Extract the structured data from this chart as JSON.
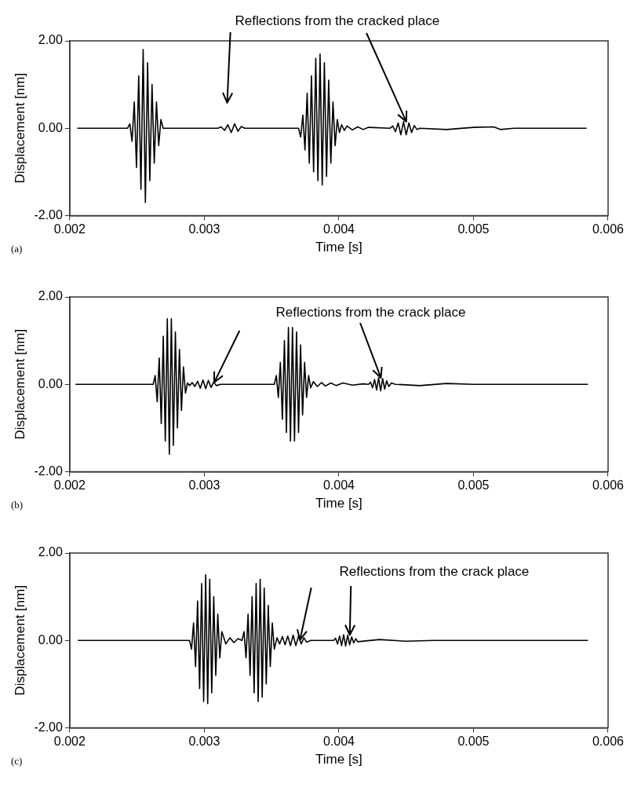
{
  "chart_data": [
    {
      "type": "line",
      "xlabel": "Time [s]",
      "ylabel": "Displacement [nm]",
      "annotations": [
        {
          "text": "Reflections from the cracked place",
          "x": 0.0045,
          "y": 0.15
        },
        "(a)"
      ],
      "xlim": [
        0.002,
        0.006
      ],
      "xticks": [
        0.002,
        0.003,
        0.004,
        0.005,
        0.006
      ],
      "ylim": [
        -2,
        2
      ],
      "yticks": [
        {
          "value": -2,
          "label": "-2.00"
        },
        {
          "value": 0,
          "label": "0.00"
        },
        {
          "value": 2,
          "label": "2.00"
        }
      ],
      "marker": "none",
      "series": [
        {
          "color": "#000000",
          "x": [
            0.002056,
            0.00243,
            0.0024465,
            0.002463,
            0.0024795,
            0.002496,
            0.0025125,
            0.002529,
            0.0025455,
            0.002562,
            0.0025785,
            0.002595,
            0.0026115,
            0.002628,
            0.0026445,
            0.002661,
            0.0026775,
            0.002694,
            0.0031,
            0.003125,
            0.00315,
            0.003175,
            0.0032,
            0.003225,
            0.00325,
            0.003275,
            0.0033,
            0.0037,
            0.003716,
            0.003732,
            0.003748,
            0.003764,
            0.00378,
            0.003796,
            0.003812,
            0.003828,
            0.003844,
            0.00386,
            0.003876,
            0.003892,
            0.003908,
            0.003924,
            0.00394,
            0.003956,
            0.003972,
            0.003988,
            0.004004,
            0.00402,
            0.00404,
            0.00406,
            0.0041,
            0.00414,
            0.00418,
            0.00422,
            0.00438,
            0.0044,
            0.00442,
            0.00444,
            0.00446,
            0.00448,
            0.0045,
            0.00452,
            0.00454,
            0.00456,
            0.00458,
            0.0046,
            0.0048,
            0.005,
            0.00515,
            0.0052,
            0.0053,
            0.00584
          ],
          "values": [
            0,
            0,
            0.1,
            -0.3,
            0.6,
            -0.9,
            1.2,
            -1.4,
            1.8,
            -1.7,
            1.5,
            -1.2,
            1.0,
            -0.8,
            0.6,
            -0.4,
            0.2,
            0,
            0,
            0.03,
            -0.05,
            0.08,
            -0.1,
            0.1,
            -0.07,
            0.04,
            0,
            0,
            -0.2,
            0.3,
            -0.5,
            0.8,
            -0.8,
            1.2,
            -1.0,
            1.6,
            -1.2,
            1.7,
            -1.3,
            1.5,
            -1.1,
            1.1,
            -0.8,
            0.6,
            -0.4,
            0.2,
            -0.1,
            0.08,
            -0.05,
            0.05,
            -0.04,
            0.03,
            -0.03,
            0.02,
            0,
            0.05,
            -0.08,
            0.12,
            -0.15,
            0.15,
            -0.15,
            0.12,
            -0.1,
            0.06,
            -0.03,
            0,
            -0.03,
            0.02,
            0.03,
            -0.03,
            0,
            0
          ]
        }
      ]
    },
    {
      "type": "line",
      "xlabel": "Time [s]",
      "ylabel": "Displacement [nm]",
      "annotations": [
        {
          "text": "Reflections from the crack place",
          "x": 0.00431,
          "y": 0.15
        },
        "(b)"
      ],
      "xlim": [
        0.002,
        0.006
      ],
      "xticks": [
        0.002,
        0.003,
        0.004,
        0.005,
        0.006
      ],
      "ylim": [
        -2,
        2
      ],
      "yticks": [
        {
          "value": -2,
          "label": "-2.00"
        },
        {
          "value": 0,
          "label": "0.00"
        },
        {
          "value": 2,
          "label": "2.00"
        }
      ],
      "marker": "none",
      "series": [
        {
          "color": "#000000",
          "x": [
            0.002043,
            0.00262,
            0.002635,
            0.00265,
            0.002665,
            0.00268,
            0.002695,
            0.00271,
            0.002725,
            0.00274,
            0.002755,
            0.00277,
            0.002785,
            0.0028,
            0.002815,
            0.00283,
            0.002845,
            0.00286,
            0.002875,
            0.00289,
            0.00291,
            0.00293,
            0.00295,
            0.00297,
            0.00299,
            0.00301,
            0.00303,
            0.00305,
            0.00307,
            0.00309,
            0.00312,
            0.00352,
            0.003535,
            0.00355,
            0.003565,
            0.00358,
            0.003595,
            0.00361,
            0.003625,
            0.00364,
            0.003655,
            0.00367,
            0.003685,
            0.0037,
            0.003715,
            0.00373,
            0.003745,
            0.00376,
            0.003775,
            0.00379,
            0.00381,
            0.00384,
            0.00387,
            0.0039,
            0.00394,
            0.00398,
            0.00403,
            0.0041,
            0.00418,
            0.00422,
            0.004235,
            0.00425,
            0.004265,
            0.00428,
            0.004295,
            0.00431,
            0.004325,
            0.00434,
            0.004355,
            0.00437,
            0.00439,
            0.00442,
            0.0046,
            0.0048,
            0.005,
            0.00585
          ],
          "values": [
            0,
            0,
            0.2,
            -0.4,
            0.6,
            -0.9,
            1.1,
            -1.3,
            1.5,
            -1.6,
            1.5,
            -1.4,
            1.2,
            -1.0,
            0.8,
            -0.6,
            0.4,
            -0.2,
            0.03,
            -0.03,
            0.04,
            -0.05,
            0.07,
            -0.09,
            0.1,
            -0.1,
            0.09,
            -0.07,
            0.05,
            -0.03,
            0,
            0,
            0.2,
            -0.3,
            0.5,
            -0.8,
            1.0,
            -1.1,
            1.3,
            -1.3,
            1.3,
            -1.3,
            1.2,
            -1.1,
            0.9,
            -0.7,
            0.5,
            -0.3,
            0.2,
            -0.08,
            0.06,
            -0.05,
            0.04,
            -0.04,
            0.03,
            -0.03,
            0.03,
            -0.02,
            0.01,
            0,
            0.05,
            -0.08,
            0.11,
            -0.13,
            0.15,
            -0.15,
            0.13,
            -0.11,
            0.08,
            -0.05,
            0.03,
            0,
            -0.03,
            0.02,
            0,
            0
          ]
        }
      ]
    },
    {
      "type": "line",
      "xlabel": "Time [s]",
      "ylabel": "Displacement [nm]",
      "annotations": [
        {
          "text": "Reflections from the crack place",
          "x": 0.00408,
          "y": 0.12
        },
        "(c)"
      ],
      "xlim": [
        0.002,
        0.006
      ],
      "xticks": [
        0.002,
        0.003,
        0.004,
        0.005,
        0.006
      ],
      "ylim": [
        -2,
        2
      ],
      "yticks": [
        {
          "value": -2,
          "label": "-2.00"
        },
        {
          "value": 0,
          "label": "0.00"
        },
        {
          "value": 2,
          "label": "2.00"
        }
      ],
      "marker": "none",
      "series": [
        {
          "color": "#000000",
          "x": [
            0.00206,
            0.00289,
            0.002905,
            0.00292,
            0.002935,
            0.00295,
            0.002965,
            0.00298,
            0.002995,
            0.00301,
            0.003025,
            0.00304,
            0.003055,
            0.00307,
            0.003085,
            0.0031,
            0.003115,
            0.00313,
            0.00316,
            0.00319,
            0.00322,
            0.00325,
            0.00328,
            0.003295,
            0.00331,
            0.003325,
            0.00334,
            0.003355,
            0.00337,
            0.003385,
            0.0034,
            0.003415,
            0.00343,
            0.003445,
            0.00346,
            0.003475,
            0.00349,
            0.003505,
            0.00352,
            0.00354,
            0.00356,
            0.00358,
            0.0036,
            0.00362,
            0.00364,
            0.00366,
            0.00368,
            0.0037,
            0.00372,
            0.00374,
            0.00376,
            0.00379,
            0.00396,
            0.003975,
            0.00399,
            0.004005,
            0.00402,
            0.004035,
            0.00405,
            0.004065,
            0.00408,
            0.004095,
            0.00411,
            0.004125,
            0.00414,
            0.0043,
            0.0045,
            0.0047,
            0.00585
          ],
          "values": [
            0,
            0,
            -0.2,
            0.4,
            -0.6,
            0.9,
            -1.1,
            1.3,
            -1.4,
            1.5,
            -1.45,
            1.4,
            -1.2,
            1.0,
            -0.8,
            0.6,
            -0.4,
            0.2,
            -0.08,
            0.06,
            -0.05,
            0.04,
            0,
            0.2,
            -0.4,
            0.6,
            -0.8,
            1.0,
            -1.2,
            1.3,
            -1.4,
            1.4,
            -1.3,
            1.2,
            -1.0,
            0.8,
            -0.6,
            0.4,
            -0.2,
            0.06,
            -0.08,
            0.09,
            -0.1,
            0.1,
            -0.12,
            0.12,
            -0.12,
            0.1,
            -0.08,
            0.06,
            -0.04,
            0,
            0,
            0.05,
            -0.08,
            0.1,
            -0.12,
            0.13,
            -0.13,
            0.12,
            -0.1,
            0.08,
            -0.06,
            0.04,
            -0.03,
            0.02,
            -0.02,
            0,
            0
          ]
        }
      ]
    }
  ]
}
